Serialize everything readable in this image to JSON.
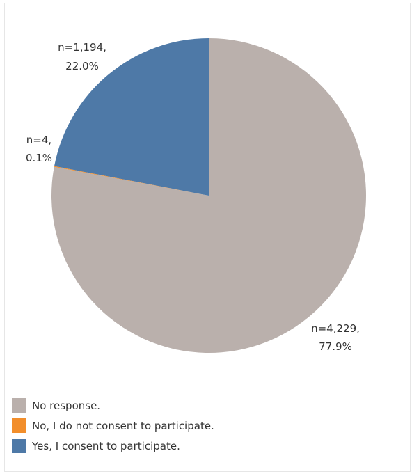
{
  "chart_data": {
    "type": "pie",
    "title": "",
    "slices": [
      {
        "name": "No response.",
        "n": 4229,
        "percent": 77.9,
        "color": "#bab0ac",
        "label_lines": [
          "n=4,229,",
          "77.9%"
        ]
      },
      {
        "name": "No, I do not consent to participate.",
        "n": 4,
        "percent": 0.1,
        "color": "#f28e2b",
        "label_lines": [
          "n=4,",
          "0.1%"
        ]
      },
      {
        "name": "Yes, I consent to participate.",
        "n": 1194,
        "percent": 22.0,
        "color": "#4e79a7",
        "label_lines": [
          "n=1,194,",
          "22.0%"
        ]
      }
    ],
    "legend_position": "bottom-left"
  }
}
